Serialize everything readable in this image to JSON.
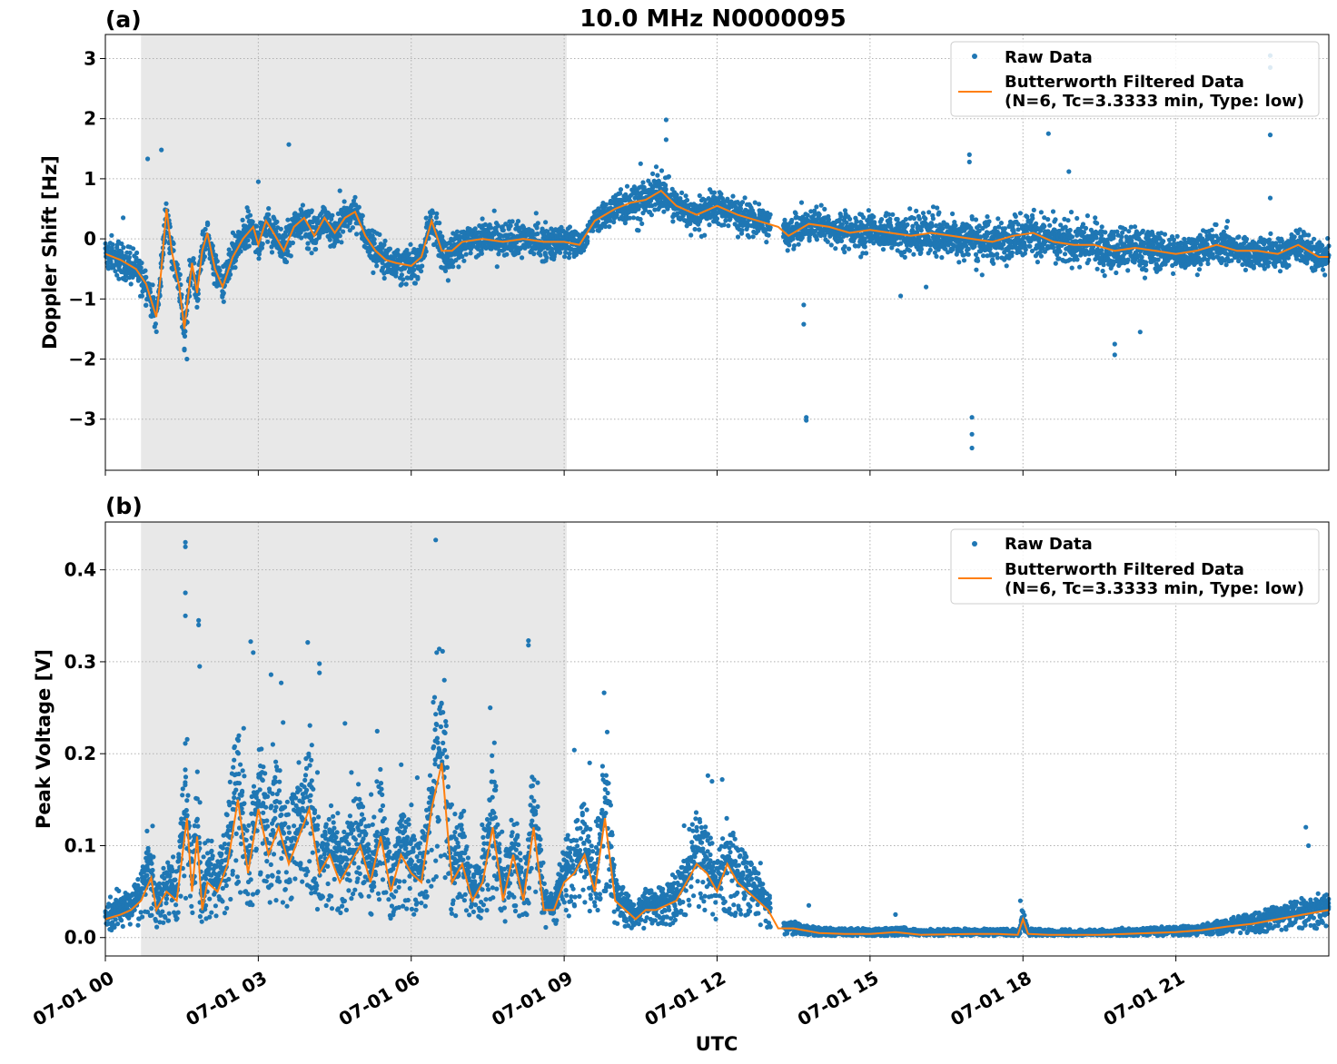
{
  "title": "10.0 MHz N0000095",
  "xlabel": "UTC",
  "x_tick_labels": [
    "07-01 00",
    "07-01 03",
    "07-01 06",
    "07-01 09",
    "07-01 12",
    "07-01 15",
    "07-01 18",
    "07-01 21"
  ],
  "x_range_hours": [
    0,
    24
  ],
  "night_shade_hours": [
    0.7,
    9.05
  ],
  "colors": {
    "raw": "#1f77b4",
    "filtered": "#ff7f0e",
    "shade": "#e8e8e8"
  },
  "chart_data": [
    {
      "type": "scatter",
      "panel_label": "(a)",
      "ylabel": "Doppler Shift [Hz]",
      "ylim": [
        -3.85,
        3.4
      ],
      "yticks": [
        3,
        2,
        1,
        0,
        -1,
        -2,
        -3
      ],
      "ytick_labels": [
        "3",
        "2",
        "1",
        "0",
        "−1",
        "−2",
        "−3"
      ],
      "grid": true,
      "legend_position": "top-right",
      "legend": {
        "raw_label": "Raw Data",
        "filtered_label_1": "Butterworth Filtered Data",
        "filtered_label_2": "(N=6, Tc=3.3333 min, Type: low)"
      },
      "series": [
        {
          "name": "Butterworth Filtered Data",
          "x": [
            0.0,
            0.3,
            0.6,
            0.8,
            1.0,
            1.1,
            1.2,
            1.3,
            1.45,
            1.55,
            1.7,
            1.8,
            1.9,
            2.0,
            2.15,
            2.3,
            2.5,
            2.7,
            2.9,
            3.0,
            3.15,
            3.3,
            3.5,
            3.7,
            3.9,
            4.1,
            4.3,
            4.5,
            4.7,
            4.9,
            5.1,
            5.3,
            5.5,
            5.7,
            6.0,
            6.2,
            6.4,
            6.6,
            6.8,
            7.0,
            7.4,
            7.8,
            8.2,
            8.6,
            9.0,
            9.3,
            9.6,
            10.0,
            10.3,
            10.6,
            10.9,
            11.2,
            11.6,
            12.0,
            12.4,
            12.8,
            13.2,
            13.4,
            13.8,
            14.2,
            14.6,
            15.0,
            15.4,
            15.8,
            16.2,
            16.6,
            17.0,
            17.4,
            17.8,
            18.2,
            18.6,
            19.0,
            19.4,
            19.8,
            20.2,
            20.6,
            21.0,
            21.4,
            21.8,
            22.2,
            22.6,
            23.0,
            23.4,
            23.8,
            24.0
          ],
          "y": [
            -0.25,
            -0.35,
            -0.5,
            -0.75,
            -1.3,
            -0.5,
            0.5,
            -0.2,
            -0.8,
            -1.5,
            -0.4,
            -0.9,
            -0.2,
            0.1,
            -0.5,
            -0.8,
            -0.3,
            0.0,
            0.2,
            -0.1,
            0.3,
            0.1,
            -0.2,
            0.2,
            0.35,
            0.05,
            0.35,
            0.1,
            0.35,
            0.45,
            0.05,
            -0.2,
            -0.35,
            -0.4,
            -0.45,
            -0.3,
            0.3,
            -0.2,
            -0.2,
            -0.05,
            0.0,
            -0.05,
            0.0,
            -0.05,
            -0.05,
            -0.1,
            0.3,
            0.5,
            0.6,
            0.65,
            0.8,
            0.55,
            0.4,
            0.55,
            0.4,
            0.3,
            0.2,
            0.05,
            0.25,
            0.2,
            0.1,
            0.15,
            0.1,
            0.05,
            0.1,
            0.05,
            0.0,
            -0.05,
            0.05,
            0.1,
            -0.05,
            -0.1,
            -0.1,
            -0.2,
            -0.15,
            -0.2,
            -0.25,
            -0.2,
            -0.1,
            -0.2,
            -0.2,
            -0.25,
            -0.1,
            -0.3,
            -0.3
          ]
        },
        {
          "name": "Raw Data",
          "spread": [
            [
              0,
              0.35
            ],
            [
              9.2,
              0.35
            ],
            [
              9.4,
              0.2
            ],
            [
              10.2,
              0.4
            ],
            [
              13.2,
              0.3
            ],
            [
              13.5,
              0.3
            ],
            [
              15.5,
              0.4
            ],
            [
              19.5,
              0.45
            ],
            [
              21.5,
              0.35
            ],
            [
              24,
              0.3
            ]
          ],
          "outliers": [
            [
              0.35,
              0.35
            ],
            [
              0.83,
              1.33
            ],
            [
              1.1,
              1.48
            ],
            [
              3.6,
              1.57
            ],
            [
              4.6,
              0.8
            ],
            [
              11.0,
              1.98
            ],
            [
              11.0,
              1.65
            ],
            [
              13.7,
              -1.1
            ],
            [
              13.7,
              -1.42
            ],
            [
              13.75,
              -2.97
            ],
            [
              13.75,
              -3.02
            ],
            [
              17.0,
              -2.97
            ],
            [
              17.0,
              -3.25
            ],
            [
              17.0,
              -3.48
            ],
            [
              16.95,
              1.4
            ],
            [
              16.95,
              1.28
            ],
            [
              18.5,
              1.75
            ],
            [
              18.9,
              1.12
            ],
            [
              19.8,
              -1.75
            ],
            [
              19.8,
              -1.93
            ],
            [
              20.3,
              -1.55
            ],
            [
              22.85,
              3.05
            ],
            [
              22.85,
              2.85
            ],
            [
              22.85,
              1.73
            ],
            [
              22.85,
              0.68
            ],
            [
              15.6,
              -0.95
            ],
            [
              16.1,
              -0.8
            ],
            [
              17.2,
              -0.6
            ],
            [
              10.5,
              1.25
            ],
            [
              3.0,
              0.95
            ],
            [
              6.5,
              0.42
            ],
            [
              1.6,
              -2.0
            ],
            [
              1.55,
              -1.85
            ],
            [
              2.4,
              -0.55
            ]
          ]
        }
      ]
    },
    {
      "type": "scatter",
      "panel_label": "(b)",
      "ylabel": "Peak Voltage [V]",
      "ylim": [
        -0.02,
        0.452
      ],
      "yticks": [
        0.0,
        0.1,
        0.2,
        0.3,
        0.4
      ],
      "ytick_labels": [
        "0.0",
        "0.1",
        "0.2",
        "0.3",
        "0.4"
      ],
      "grid": true,
      "legend_position": "top-right",
      "legend": {
        "raw_label": "Raw Data",
        "filtered_label_1": "Butterworth Filtered Data",
        "filtered_label_2": "(N=6, Tc=3.3333 min, Type: low)"
      },
      "series": [
        {
          "name": "Butterworth Filtered Data",
          "x": [
            0.0,
            0.3,
            0.5,
            0.7,
            0.9,
            1.0,
            1.2,
            1.4,
            1.6,
            1.7,
            1.8,
            1.9,
            2.0,
            2.2,
            2.4,
            2.6,
            2.8,
            3.0,
            3.2,
            3.4,
            3.6,
            3.8,
            4.0,
            4.2,
            4.4,
            4.6,
            4.8,
            5.0,
            5.2,
            5.4,
            5.6,
            5.8,
            6.0,
            6.2,
            6.4,
            6.6,
            6.8,
            7.0,
            7.2,
            7.4,
            7.6,
            7.8,
            8.0,
            8.2,
            8.4,
            8.6,
            8.8,
            9.0,
            9.2,
            9.4,
            9.6,
            9.8,
            10.0,
            10.2,
            10.4,
            10.6,
            10.8,
            11.0,
            11.2,
            11.4,
            11.6,
            11.8,
            12.0,
            12.2,
            12.4,
            12.6,
            12.8,
            13.0,
            13.2,
            13.5,
            14.0,
            14.5,
            15.0,
            15.5,
            16.0,
            17.0,
            17.5,
            17.9,
            18.0,
            18.1,
            18.5,
            19.5,
            20.5,
            21.0,
            21.5,
            22.0,
            22.5,
            23.0,
            23.5,
            24.0
          ],
          "y": [
            0.02,
            0.025,
            0.03,
            0.04,
            0.065,
            0.03,
            0.05,
            0.04,
            0.13,
            0.05,
            0.11,
            0.03,
            0.06,
            0.05,
            0.08,
            0.15,
            0.07,
            0.14,
            0.09,
            0.12,
            0.08,
            0.11,
            0.14,
            0.07,
            0.09,
            0.06,
            0.08,
            0.1,
            0.06,
            0.11,
            0.05,
            0.09,
            0.07,
            0.06,
            0.14,
            0.19,
            0.06,
            0.08,
            0.04,
            0.06,
            0.12,
            0.04,
            0.09,
            0.04,
            0.12,
            0.03,
            0.03,
            0.06,
            0.07,
            0.09,
            0.05,
            0.13,
            0.04,
            0.03,
            0.02,
            0.03,
            0.03,
            0.035,
            0.04,
            0.06,
            0.08,
            0.07,
            0.05,
            0.08,
            0.06,
            0.05,
            0.04,
            0.03,
            0.01,
            0.01,
            0.005,
            0.004,
            0.004,
            0.006,
            0.003,
            0.004,
            0.004,
            0.003,
            0.02,
            0.004,
            0.003,
            0.003,
            0.005,
            0.006,
            0.008,
            0.012,
            0.015,
            0.02,
            0.025,
            0.03
          ]
        },
        {
          "name": "Raw Data",
          "outliers": [
            [
              1.57,
              0.43
            ],
            [
              1.57,
              0.425
            ],
            [
              1.57,
              0.375
            ],
            [
              1.57,
              0.35
            ],
            [
              1.83,
              0.34
            ],
            [
              1.83,
              0.345
            ],
            [
              1.85,
              0.295
            ],
            [
              2.85,
              0.322
            ],
            [
              2.9,
              0.31
            ],
            [
              3.25,
              0.286
            ],
            [
              3.45,
              0.277
            ],
            [
              4.2,
              0.298
            ],
            [
              4.2,
              0.288
            ],
            [
              4.7,
              0.233
            ],
            [
              6.55,
              0.314
            ],
            [
              6.5,
              0.31
            ],
            [
              6.65,
              0.28
            ],
            [
              7.55,
              0.25
            ],
            [
              8.3,
              0.323
            ],
            [
              8.3,
              0.318
            ],
            [
              9.2,
              0.204
            ],
            [
              9.5,
              0.19
            ],
            [
              11.9,
              0.17
            ],
            [
              12.1,
              0.172
            ],
            [
              13.8,
              0.035
            ],
            [
              15.5,
              0.025
            ],
            [
              17.95,
              0.04
            ],
            [
              23.55,
              0.12
            ],
            [
              23.6,
              0.1
            ]
          ]
        }
      ]
    }
  ]
}
